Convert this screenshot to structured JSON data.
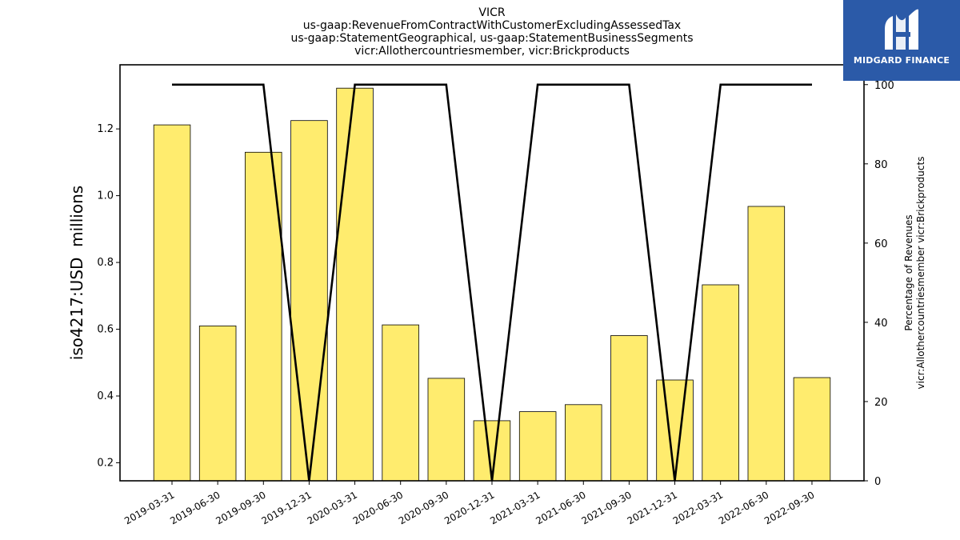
{
  "header": {
    "title_lines": [
      "VICR",
      "us-gaap:RevenueFromContractWithCustomerExcludingAssessedTax",
      "us-gaap:StatementGeographical, us-gaap:StatementBusinessSegments",
      "vicr:Allothercountriesmember, vicr:Brickproducts"
    ]
  },
  "brand": {
    "name": "MIDGARD FINANCE",
    "logo_icon": "midgard-m-logo-icon",
    "color": "#2b5aa8"
  },
  "chart_data": {
    "type": "bar",
    "categories": [
      "2019-03-31",
      "2019-06-30",
      "2019-09-30",
      "2019-12-31",
      "2020-03-31",
      "2020-06-30",
      "2020-09-30",
      "2020-12-31",
      "2021-03-31",
      "2021-06-30",
      "2021-09-30",
      "2021-12-31",
      "2022-03-31",
      "2022-06-30",
      "2022-09-30"
    ],
    "series": [
      {
        "axis": "left",
        "type": "bar",
        "color": "#ffec6e",
        "values": [
          1.212,
          0.61,
          1.13,
          1.225,
          1.322,
          0.613,
          0.453,
          0.326,
          0.353,
          0.374,
          0.581,
          0.448,
          0.733,
          0.968,
          0.455
        ]
      },
      {
        "axis": "right",
        "type": "line",
        "color": "#000000",
        "values": [
          100,
          100,
          100,
          0,
          100,
          100,
          100,
          0,
          100,
          100,
          100,
          0,
          100,
          100,
          100
        ]
      }
    ],
    "ylabel": "iso4217:USD  millions",
    "ylabel_right": [
      "Percentage of Revenues",
      "vicr:Allothercountriesmember vicr:Brickproducts"
    ],
    "ylim": [
      0.146,
      1.392
    ],
    "yticks": [
      0.2,
      0.4,
      0.6,
      0.8,
      1.0,
      1.2
    ],
    "ylim_right": [
      0,
      105
    ],
    "yticks_right": [
      0,
      20,
      40,
      60,
      80,
      100
    ],
    "grid": false,
    "legend": "none"
  }
}
